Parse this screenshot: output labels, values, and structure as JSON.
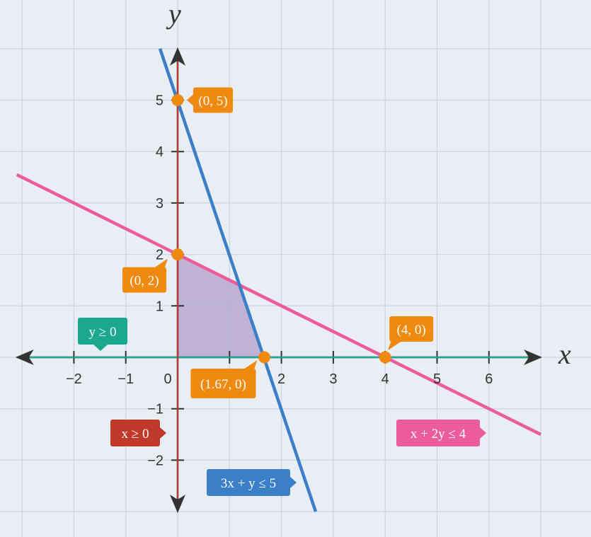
{
  "chart_data": {
    "type": "line",
    "title": "",
    "xlabel": "x",
    "ylabel": "y",
    "xlim": [
      -3.1,
      7.0
    ],
    "ylim": [
      -3.0,
      6.0
    ],
    "x_ticks": [
      -2,
      -1,
      0,
      1,
      2,
      3,
      4,
      5,
      6
    ],
    "y_ticks": [
      -2,
      -1,
      1,
      2,
      3,
      4,
      5
    ],
    "x_tick_labels": [
      "−2",
      "−1",
      "0",
      "1",
      "2",
      "3",
      "4",
      "5",
      "6"
    ],
    "y_tick_labels": [
      "−2",
      "−1",
      "1",
      "2",
      "3",
      "4",
      "5"
    ],
    "grid": true,
    "series": [
      {
        "name": "3x + y ≤ 5",
        "equation": "y = 5 - 3x",
        "color": "#3a7fc8",
        "x": [
          -0.34,
          2.66
        ],
        "y": [
          6.0,
          -3.0
        ]
      },
      {
        "name": "x + 2y ≤ 4",
        "equation": "y = 2 - x/2",
        "color": "#ec5c9c",
        "x": [
          -3.1,
          7.0
        ],
        "y": [
          3.55,
          -1.5
        ]
      },
      {
        "name": "x ≥ 0",
        "equation": "x = 0",
        "color": "#c0392b",
        "x": [
          0,
          0
        ],
        "y": [
          -3.0,
          6.0
        ]
      },
      {
        "name": "y ≥ 0",
        "equation": "y = 0",
        "color": "#1aa88f",
        "x": [
          -3.1,
          7.0
        ],
        "y": [
          0,
          0
        ]
      }
    ],
    "feasible_region": {
      "color": "#b9a8d0",
      "vertices": [
        [
          0,
          0
        ],
        [
          0,
          2
        ],
        [
          1.2,
          1.4
        ],
        [
          1.67,
          0
        ]
      ]
    },
    "points": [
      {
        "label": "(0, 5)",
        "x": 0,
        "y": 5
      },
      {
        "label": "(0, 2)",
        "x": 0,
        "y": 2
      },
      {
        "label": "(1.67, 0)",
        "x": 1.67,
        "y": 0
      },
      {
        "label": "(4, 0)",
        "x": 4,
        "y": 0
      }
    ],
    "colors": {
      "background": "#e8eef4",
      "grid": "#ccd6e0",
      "axis": "#333333",
      "point": "#f0890f",
      "point_label_bg": "#f0890f"
    }
  }
}
